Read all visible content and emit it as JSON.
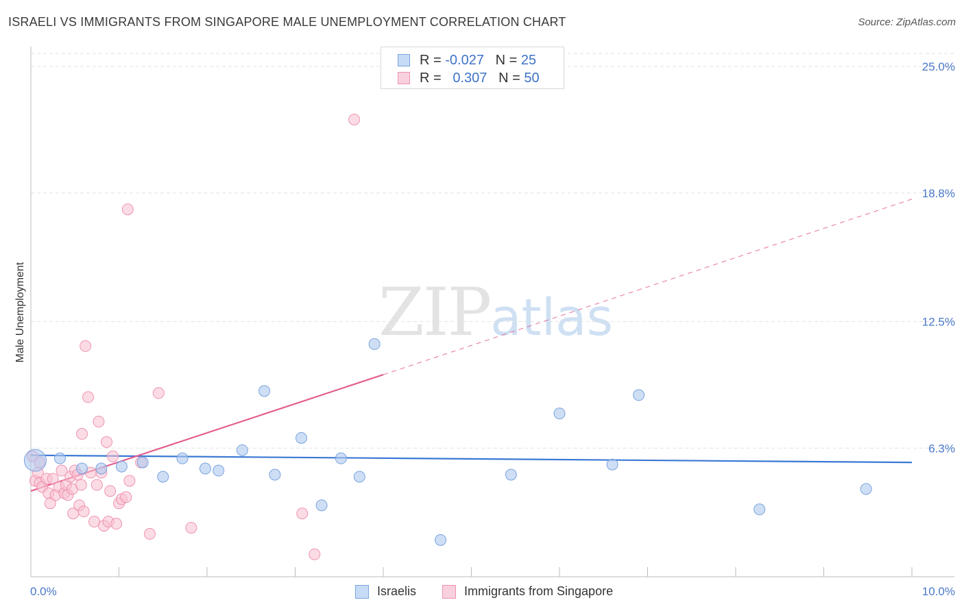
{
  "title": "ISRAELI VS IMMIGRANTS FROM SINGAPORE MALE UNEMPLOYMENT CORRELATION CHART",
  "source": "Source: ZipAtlas.com",
  "watermark": {
    "zip": "ZIP",
    "atlas": "atlas"
  },
  "legend": {
    "row1": {
      "r_label": "R = ",
      "r_value": "-0.027",
      "n_label": "N = ",
      "n_value": "25"
    },
    "row2": {
      "r_label": "R = ",
      "r_value": "0.307",
      "n_label": "N = ",
      "n_value": "50"
    }
  },
  "colors": {
    "israelis_fill": "#aec8ee",
    "israelis_stroke": "#7aa3de",
    "israelis_line": "#3a78d4",
    "singapore_fill": "#f7bfd0",
    "singapore_stroke": "#ee93b0",
    "singapore_line": "#e35e8f",
    "grid": "#e2e2e2",
    "axis": "#bbbbbb"
  },
  "chart_data": {
    "type": "scatter",
    "title": "ISRAELI VS IMMIGRANTS FROM SINGAPORE MALE UNEMPLOYMENT CORRELATION CHART",
    "xlabel": "",
    "ylabel": "Male Unemployment",
    "xlim": [
      0,
      10
    ],
    "ylim": [
      0,
      25
    ],
    "x_tick_labels": [
      "0.0%",
      "10.0%"
    ],
    "y_ticks": [
      6.3,
      12.5,
      18.8,
      25.0
    ],
    "y_tick_labels": [
      "6.3%",
      "12.5%",
      "18.8%",
      "25.0%"
    ],
    "grid": true,
    "legend_position": "top-center",
    "series": [
      {
        "name": "Israelis",
        "r": -0.027,
        "n": 25,
        "trend": {
          "x": [
            0,
            10
          ],
          "y": [
            5.95,
            5.6
          ],
          "dashed_extension": false
        },
        "points": [
          [
            0.05,
            5.7
          ],
          [
            0.33,
            5.8
          ],
          [
            0.58,
            5.3
          ],
          [
            0.8,
            5.3
          ],
          [
            1.03,
            5.4
          ],
          [
            1.27,
            5.6
          ],
          [
            1.5,
            4.9
          ],
          [
            1.72,
            5.8
          ],
          [
            1.98,
            5.3
          ],
          [
            2.13,
            5.2
          ],
          [
            2.4,
            6.2
          ],
          [
            2.65,
            9.1
          ],
          [
            2.77,
            5.0
          ],
          [
            3.07,
            6.8
          ],
          [
            3.3,
            3.5
          ],
          [
            3.52,
            5.8
          ],
          [
            3.73,
            4.9
          ],
          [
            3.9,
            11.4
          ],
          [
            4.65,
            1.8
          ],
          [
            5.45,
            5.0
          ],
          [
            6.0,
            8.0
          ],
          [
            6.6,
            5.5
          ],
          [
            6.9,
            8.9
          ],
          [
            8.27,
            3.3
          ],
          [
            9.48,
            4.3
          ]
        ]
      },
      {
        "name": "Immigrants from Singapore",
        "r": 0.307,
        "n": 50,
        "trend": {
          "x": [
            0,
            4.0
          ],
          "y": [
            4.2,
            9.9
          ],
          "dashed_x": [
            4.0,
            10
          ],
          "dashed_y": [
            9.9,
            18.5
          ]
        },
        "points": [
          [
            0.02,
            5.9
          ],
          [
            0.05,
            4.7
          ],
          [
            0.08,
            5.1
          ],
          [
            0.1,
            4.6
          ],
          [
            0.13,
            4.4
          ],
          [
            0.18,
            4.8
          ],
          [
            0.2,
            4.1
          ],
          [
            0.22,
            3.6
          ],
          [
            0.25,
            4.8
          ],
          [
            0.28,
            4.0
          ],
          [
            0.32,
            4.4
          ],
          [
            0.35,
            5.2
          ],
          [
            0.38,
            4.1
          ],
          [
            0.4,
            4.5
          ],
          [
            0.42,
            4.0
          ],
          [
            0.45,
            4.9
          ],
          [
            0.47,
            4.3
          ],
          [
            0.5,
            5.2
          ],
          [
            0.48,
            3.1
          ],
          [
            0.53,
            5.0
          ],
          [
            0.55,
            3.5
          ],
          [
            0.57,
            4.5
          ],
          [
            0.58,
            7.0
          ],
          [
            0.6,
            3.2
          ],
          [
            0.62,
            11.3
          ],
          [
            0.65,
            8.8
          ],
          [
            0.68,
            5.1
          ],
          [
            0.72,
            2.7
          ],
          [
            0.75,
            4.5
          ],
          [
            0.77,
            7.6
          ],
          [
            0.8,
            5.1
          ],
          [
            0.83,
            2.5
          ],
          [
            0.86,
            6.6
          ],
          [
            0.88,
            2.7
          ],
          [
            0.9,
            4.2
          ],
          [
            0.93,
            5.9
          ],
          [
            0.97,
            2.6
          ],
          [
            1.0,
            3.6
          ],
          [
            1.03,
            3.8
          ],
          [
            1.08,
            3.9
          ],
          [
            1.1,
            18.0
          ],
          [
            1.12,
            4.7
          ],
          [
            1.25,
            5.6
          ],
          [
            1.35,
            2.1
          ],
          [
            1.45,
            9.0
          ],
          [
            1.82,
            2.4
          ],
          [
            3.08,
            3.1
          ],
          [
            3.22,
            1.1
          ],
          [
            3.67,
            22.4
          ],
          [
            0.1,
            5.6
          ]
        ]
      }
    ]
  },
  "bottom_legend": {
    "israelis": "Israelis",
    "singapore": "Immigrants from Singapore"
  }
}
